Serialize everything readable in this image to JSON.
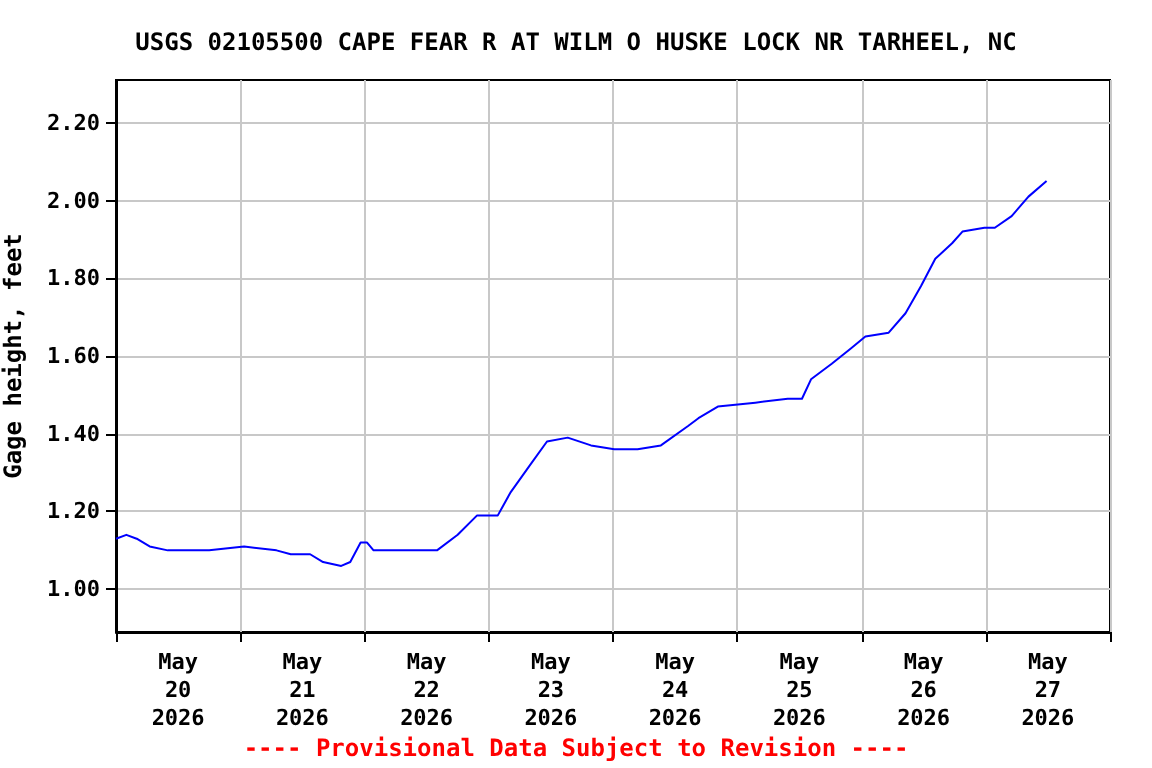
{
  "chart_data": {
    "type": "line",
    "title": "USGS 02105500 CAPE FEAR R AT WILM O HUSKE LOCK NR TARHEEL, NC",
    "ylabel": "Gage height, feet",
    "annotations": [
      "---- Provisional Data Subject to Revision ----"
    ],
    "x": [
      "2026-05-20T00:00",
      "2026-05-20T02:00",
      "2026-05-20T04:00",
      "2026-05-20T06:30",
      "2026-05-20T10:00",
      "2026-05-20T18:00",
      "2026-05-21T00:45",
      "2026-05-21T07:00",
      "2026-05-21T09:45",
      "2026-05-21T13:30",
      "2026-05-21T16:00",
      "2026-05-21T19:30",
      "2026-05-21T21:15",
      "2026-05-21T23:15",
      "2026-05-22T00:30",
      "2026-05-22T01:45",
      "2026-05-22T14:00",
      "2026-05-22T18:00",
      "2026-05-22T21:45",
      "2026-05-23T01:45",
      "2026-05-23T04:15",
      "2026-05-23T08:00",
      "2026-05-23T11:15",
      "2026-05-23T15:15",
      "2026-05-23T19:45",
      "2026-05-24T00:15",
      "2026-05-24T04:45",
      "2026-05-24T09:15",
      "2026-05-24T14:30",
      "2026-05-24T16:30",
      "2026-05-24T20:15",
      "2026-05-25T03:30",
      "2026-05-25T09:45",
      "2026-05-25T12:30",
      "2026-05-25T14:15",
      "2026-05-25T18:15",
      "2026-05-25T22:00",
      "2026-05-26T00:45",
      "2026-05-26T05:15",
      "2026-05-26T08:30",
      "2026-05-26T11:30",
      "2026-05-26T14:15",
      "2026-05-26T17:30",
      "2026-05-26T19:30",
      "2026-05-26T23:45",
      "2026-05-27T01:45",
      "2026-05-27T05:00",
      "2026-05-27T08:15",
      "2026-05-27T11:45"
    ],
    "series": [
      {
        "color": "#0000ff",
        "values": [
          1.13,
          1.14,
          1.13,
          1.11,
          1.1,
          1.1,
          1.11,
          1.1,
          1.09,
          1.09,
          1.07,
          1.06,
          1.07,
          1.12,
          1.12,
          1.1,
          1.1,
          1.14,
          1.19,
          1.19,
          1.25,
          1.32,
          1.38,
          1.39,
          1.37,
          1.36,
          1.36,
          1.37,
          1.42,
          1.44,
          1.47,
          1.48,
          1.49,
          1.49,
          1.54,
          1.58,
          1.62,
          1.65,
          1.66,
          1.71,
          1.78,
          1.85,
          1.89,
          1.92,
          1.93,
          1.93,
          1.96,
          2.01,
          2.05
        ]
      }
    ],
    "xlim": [
      "2026-05-20T00:00",
      "2026-05-28T00:00"
    ],
    "xticks": [
      {
        "value": "2026-05-20T00:00",
        "label": null
      },
      {
        "value": "2026-05-20T12:00",
        "label": "May\n20\n2026"
      },
      {
        "value": "2026-05-21T00:00",
        "label": null
      },
      {
        "value": "2026-05-21T12:00",
        "label": "May\n21\n2026"
      },
      {
        "value": "2026-05-22T00:00",
        "label": null
      },
      {
        "value": "2026-05-22T12:00",
        "label": "May\n22\n2026"
      },
      {
        "value": "2026-05-23T00:00",
        "label": null
      },
      {
        "value": "2026-05-23T12:00",
        "label": "May\n23\n2026"
      },
      {
        "value": "2026-05-24T00:00",
        "label": null
      },
      {
        "value": "2026-05-24T12:00",
        "label": "May\n24\n2026"
      },
      {
        "value": "2026-05-25T00:00",
        "label": null
      },
      {
        "value": "2026-05-25T12:00",
        "label": "May\n25\n2026"
      },
      {
        "value": "2026-05-26T00:00",
        "label": null
      },
      {
        "value": "2026-05-26T12:00",
        "label": "May\n26\n2026"
      },
      {
        "value": "2026-05-27T00:00",
        "label": null
      },
      {
        "value": "2026-05-27T12:00",
        "label": "May\n27\n2026"
      },
      {
        "value": "2026-05-28T00:00",
        "label": null
      }
    ],
    "ylim": [
      0.89,
      2.31
    ],
    "yticks": [
      {
        "value": 1,
        "label": "1.00"
      },
      {
        "value": 1.2,
        "label": "1.20"
      },
      {
        "value": 1.4,
        "label": "1.40"
      },
      {
        "value": 1.6,
        "label": "1.60"
      },
      {
        "value": 1.8,
        "label": "1.80"
      },
      {
        "value": 2,
        "label": "2.00"
      },
      {
        "value": 2.2,
        "label": "2.20"
      }
    ],
    "grid": true,
    "marker": "none",
    "line_style": "solid"
  }
}
